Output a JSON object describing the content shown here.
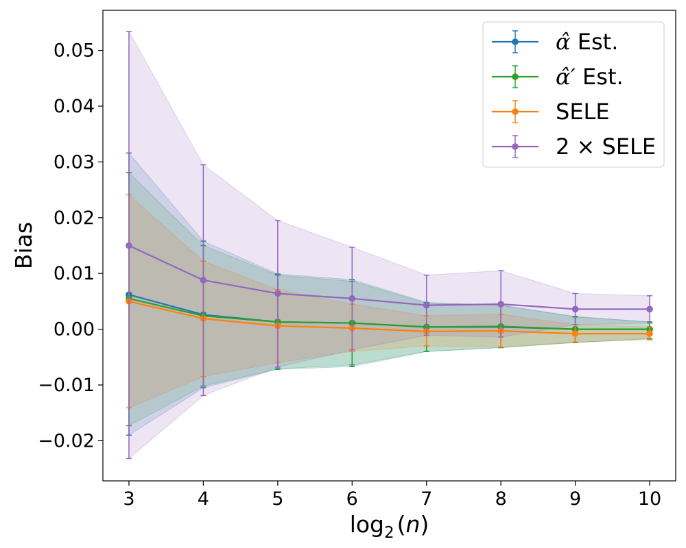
{
  "chart_data": {
    "type": "line",
    "xlabel": "log₂(n)",
    "ylabel": "Bias",
    "x": [
      3,
      4,
      5,
      6,
      7,
      8,
      9,
      10
    ],
    "xlim": [
      2.65,
      10.35
    ],
    "ylim": [
      -0.0272,
      0.0572
    ],
    "xticks": [
      "3",
      "4",
      "5",
      "6",
      "7",
      "8",
      "9",
      "10"
    ],
    "yticks": [
      {
        "value": -0.02,
        "label": "−0.02"
      },
      {
        "value": -0.01,
        "label": "−0.01"
      },
      {
        "value": 0.0,
        "label": "0.00"
      },
      {
        "value": 0.01,
        "label": "0.01"
      },
      {
        "value": 0.02,
        "label": "0.02"
      },
      {
        "value": 0.03,
        "label": "0.03"
      },
      {
        "value": 0.04,
        "label": "0.04"
      },
      {
        "value": 0.05,
        "label": "0.05"
      }
    ],
    "legend_position": "top-right",
    "series": [
      {
        "name": "alpha-hat",
        "label_math": "α̂",
        "label_text": " Est.",
        "color": "#1f77b4",
        "values": [
          0.0062,
          0.0026,
          0.0013,
          0.0011,
          0.0004,
          0.0004,
          0.0,
          0.0
        ],
        "lower": [
          -0.019,
          -0.0105,
          -0.0072,
          -0.0067,
          -0.004,
          -0.0033,
          -0.0024,
          -0.0017
        ],
        "upper": [
          0.0316,
          0.0158,
          0.0099,
          0.0089,
          0.0048,
          0.0043,
          0.0023,
          0.0013
        ]
      },
      {
        "name": "alpha-hat-prime",
        "label_math": "α̂′",
        "label_text": " Est.",
        "color": "#2ca02c",
        "values": [
          0.0055,
          0.0024,
          0.0013,
          0.0011,
          0.0004,
          0.0005,
          0.0,
          0.0
        ],
        "lower": [
          -0.0173,
          -0.0102,
          -0.0071,
          -0.0064,
          -0.004,
          -0.0033,
          -0.0024,
          -0.0017
        ],
        "upper": [
          0.0281,
          0.015,
          0.0097,
          0.0086,
          0.0047,
          0.0043,
          0.0022,
          0.0013
        ]
      },
      {
        "name": "sele",
        "label_math": "",
        "label_text": "SELE",
        "color": "#ff7f0e",
        "values": [
          0.005,
          0.0019,
          0.0006,
          0.0002,
          -0.0004,
          -0.0003,
          -0.0008,
          -0.0008
        ],
        "lower": [
          -0.0141,
          -0.0085,
          -0.006,
          -0.004,
          -0.003,
          -0.0032,
          -0.0023,
          -0.0019
        ],
        "upper": [
          0.0241,
          0.0122,
          0.0071,
          0.0045,
          0.0024,
          0.0027,
          0.0008,
          0.0004
        ]
      },
      {
        "name": "two-sele",
        "label_math": "",
        "label_text": "2 × SELE",
        "color": "#9467bd",
        "values": [
          0.015,
          0.0088,
          0.0064,
          0.0055,
          0.0043,
          0.0045,
          0.0036,
          0.0036
        ],
        "lower": [
          -0.0232,
          -0.0119,
          -0.0068,
          -0.0037,
          -0.0011,
          -0.0014,
          0.0008,
          0.0011
        ],
        "upper": [
          0.0534,
          0.0295,
          0.0195,
          0.0147,
          0.0097,
          0.0105,
          0.0064,
          0.006
        ]
      }
    ]
  }
}
